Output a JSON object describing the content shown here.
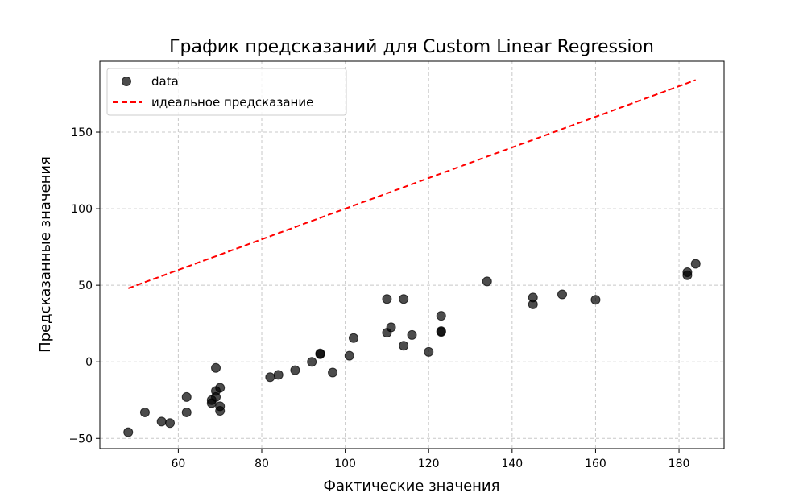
{
  "chart_data": {
    "type": "scatter",
    "title": "График предсказаний для Custom Linear Regression",
    "xlabel": "Фактические значения",
    "ylabel": "Предсказанные значения",
    "xlim": [
      41.2,
      190.8
    ],
    "ylim": [
      -56.7,
      196.3
    ],
    "xticks": [
      60,
      80,
      100,
      120,
      140,
      160,
      180
    ],
    "yticks": [
      -50,
      0,
      50,
      100,
      150
    ],
    "grid": true,
    "legend_position": "top-left",
    "series": [
      {
        "name": "data",
        "kind": "scatter",
        "color": "#000000",
        "points": [
          [
            48,
            -46
          ],
          [
            52,
            -33
          ],
          [
            56,
            -39
          ],
          [
            58,
            -40
          ],
          [
            62,
            -23
          ],
          [
            62,
            -33
          ],
          [
            68,
            -25
          ],
          [
            68,
            -27
          ],
          [
            69,
            -4
          ],
          [
            69,
            -19
          ],
          [
            69,
            -23
          ],
          [
            70,
            -17
          ],
          [
            70,
            -29
          ],
          [
            70,
            -32
          ],
          [
            82,
            -10
          ],
          [
            84,
            -8.5
          ],
          [
            88,
            -5.5
          ],
          [
            92,
            0
          ],
          [
            94,
            5
          ],
          [
            94,
            5.5
          ],
          [
            97,
            -7
          ],
          [
            101,
            4
          ],
          [
            102,
            15.5
          ],
          [
            110,
            41
          ],
          [
            110,
            19
          ],
          [
            111,
            22.5
          ],
          [
            114,
            41
          ],
          [
            114,
            10.5
          ],
          [
            116,
            17.5
          ],
          [
            120,
            6.5
          ],
          [
            123,
            30
          ],
          [
            123,
            19.5
          ],
          [
            123,
            20
          ],
          [
            134,
            52.5
          ],
          [
            145,
            42
          ],
          [
            145,
            37.5
          ],
          [
            152,
            44
          ],
          [
            160,
            40.5
          ],
          [
            182,
            58.5
          ],
          [
            182,
            56.5
          ],
          [
            184,
            64
          ]
        ]
      },
      {
        "name": "идеальное предсказание",
        "kind": "line",
        "style": "dashed",
        "color": "#ff0000",
        "points": [
          [
            48,
            48
          ],
          [
            184,
            184
          ]
        ]
      }
    ]
  }
}
